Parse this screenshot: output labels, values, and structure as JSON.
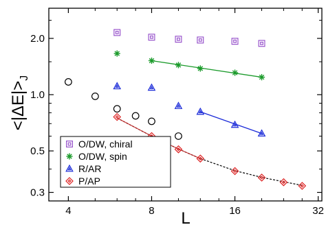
{
  "chart_data": {
    "type": "scatter",
    "title": "",
    "xlabel": "L",
    "ylabel": "<|ΔE|>",
    "ylabel_subscript": "J",
    "x_scale": "log",
    "y_scale": "log",
    "xlim": [
      3.4,
      33
    ],
    "ylim": [
      0.27,
      2.9
    ],
    "x_ticks": [
      {
        "value": 4,
        "label": "4"
      },
      {
        "value": 8,
        "label": "8"
      },
      {
        "value": 16,
        "label": "16"
      },
      {
        "value": 32,
        "label": "32"
      }
    ],
    "y_ticks": [
      {
        "value": 0.3,
        "label": "0.3"
      },
      {
        "value": 0.5,
        "label": "0.5"
      },
      {
        "value": 1.0,
        "label": "1.0"
      },
      {
        "value": 2.0,
        "label": "2.0"
      }
    ],
    "legend_position": "bottom-left",
    "series": [
      {
        "name": "O/DW, chiral",
        "marker": "square",
        "color": "#9955cc",
        "x": [
          6,
          8,
          10,
          12,
          16,
          20
        ],
        "y": [
          2.15,
          2.03,
          1.98,
          1.96,
          1.93,
          1.88
        ]
      },
      {
        "name": "O/DW, spin",
        "marker": "asterisk",
        "color": "#1a9a2a",
        "x": [
          6,
          8,
          10,
          12,
          16,
          20
        ],
        "y": [
          1.66,
          1.52,
          1.44,
          1.38,
          1.31,
          1.24
        ],
        "fit": {
          "color": "#1a9a2a",
          "dashed": false,
          "x": [
            8,
            20
          ],
          "y": [
            1.52,
            1.24
          ]
        }
      },
      {
        "name": "R/AR",
        "marker": "triangle",
        "color": "#1a2ad8",
        "x": [
          6,
          8,
          10,
          12,
          16,
          20
        ],
        "y": [
          1.11,
          1.09,
          0.87,
          0.81,
          0.69,
          0.62
        ],
        "fit": {
          "color": "#1a2ad8",
          "dashed": false,
          "x": [
            12,
            20
          ],
          "y": [
            0.81,
            0.62
          ]
        }
      },
      {
        "name": "",
        "marker": "circle",
        "color": "#000000",
        "x": [
          4,
          5,
          6,
          7,
          8,
          10
        ],
        "y": [
          1.17,
          0.98,
          0.84,
          0.77,
          0.72,
          0.6
        ]
      },
      {
        "name": "P/AP",
        "marker": "diamond",
        "color": "#dd2222",
        "x": [
          6,
          8,
          10,
          12,
          16,
          20,
          24,
          28
        ],
        "y": [
          0.76,
          0.6,
          0.51,
          0.455,
          0.39,
          0.36,
          0.34,
          0.325
        ],
        "fit": {
          "color": "#000000",
          "dashed": true,
          "x": [
            6,
            8,
            10,
            12,
            16,
            20,
            24,
            28
          ],
          "y": [
            0.75,
            0.6,
            0.512,
            0.455,
            0.392,
            0.361,
            0.342,
            0.327
          ]
        }
      }
    ]
  }
}
